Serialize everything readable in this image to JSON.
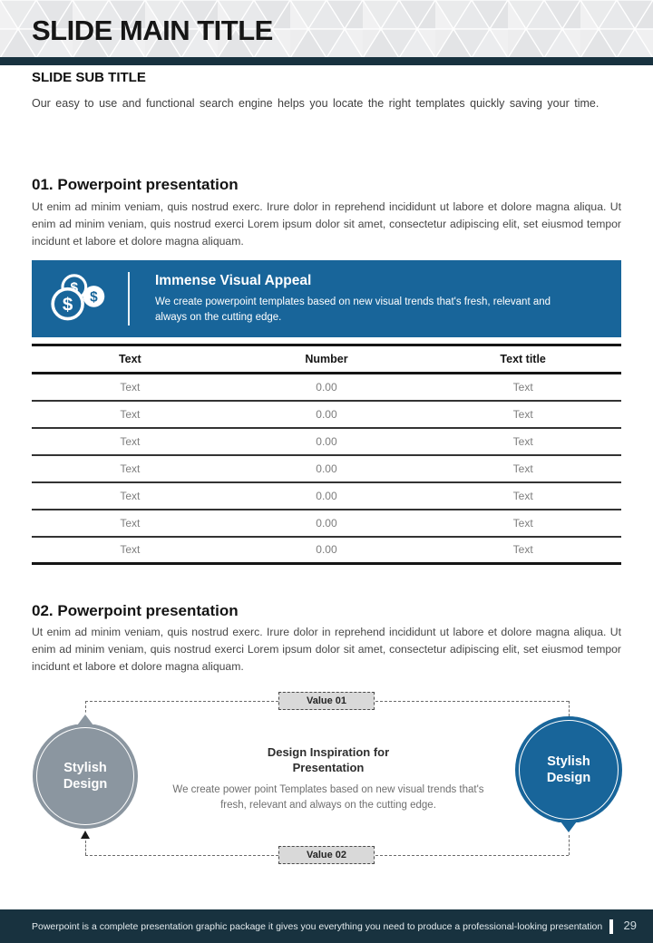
{
  "header": {
    "title": "SLIDE MAIN TITLE"
  },
  "intro": {
    "subtitle": "SLIDE SUB TITLE",
    "text": "Our easy to use and functional search engine helps you locate the right templates quickly saving your time."
  },
  "sections": [
    {
      "title": "01. Powerpoint presentation",
      "body": "Ut enim ad minim veniam, quis nostrud exerc. Irure dolor in reprehend incididunt ut labore et dolore magna aliqua. Ut enim ad minim veniam, quis nostrud exerci Lorem ipsum dolor sit amet, consectetur adipiscing elit, set eiusmod tempor incidunt et labore et dolore magna aliquam."
    },
    {
      "title": "02. Powerpoint presentation",
      "body": "Ut enim ad minim veniam, quis nostrud exerc. Irure dolor in reprehend incididunt ut labore et dolore magna aliqua. Ut enim ad minim veniam, quis nostrud exerci Lorem ipsum dolor sit amet, consectetur adipiscing elit, set eiusmod tempor incidunt et labore et dolore magna aliquam."
    }
  ],
  "banner": {
    "icon": "dollar-coins-icon",
    "title": "Immense Visual Appeal",
    "text": "We create powerpoint templates based on new visual trends that's fresh, relevant and always on the cutting edge."
  },
  "table": {
    "headers": [
      "Text",
      "Number",
      "Text title"
    ],
    "rows": [
      [
        "Text",
        "0.00",
        "Text"
      ],
      [
        "Text",
        "0.00",
        "Text"
      ],
      [
        "Text",
        "0.00",
        "Text"
      ],
      [
        "Text",
        "0.00",
        "Text"
      ],
      [
        "Text",
        "0.00",
        "Text"
      ],
      [
        "Text",
        "0.00",
        "Text"
      ],
      [
        "Text",
        "0.00",
        "Text"
      ]
    ]
  },
  "diagram": {
    "value_top": "Value 01",
    "value_bottom": "Value 02",
    "left_bubble": {
      "label": "Stylish Design",
      "color": "#8b96a0"
    },
    "right_bubble": {
      "label": "Stylish Design",
      "color": "#18659a"
    },
    "center": {
      "title": "Design Inspiration for Presentation",
      "text": "We create power point Templates based on new visual trends that's fresh, relevant and always on the cutting edge."
    }
  },
  "footer": {
    "text": "Powerpoint is a complete presentation graphic package it gives you everything you need to produce a professional-looking presentation",
    "page": "29"
  },
  "colors": {
    "accent_blue": "#18659a",
    "bubble_gray": "#8b96a0",
    "dark_teal": "#18323f",
    "value_box_gray": "#d9d9d9"
  }
}
